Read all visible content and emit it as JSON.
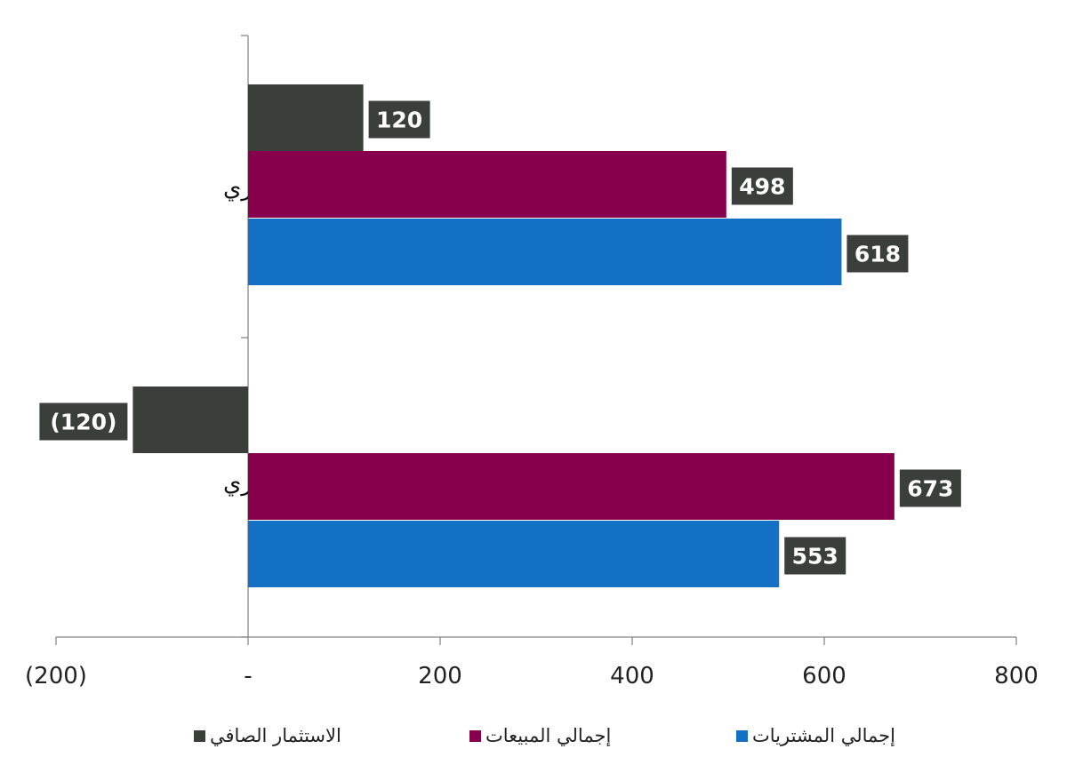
{
  "chart_data": {
    "type": "bar",
    "orientation": "horizontal",
    "categories": [
      "غير قطري",
      "قطري"
    ],
    "series": [
      {
        "name": "الاستثمار الصافي",
        "color": "#3A3F3C",
        "values": [
          120,
          -120
        ],
        "labels": [
          "120",
          "(120)"
        ]
      },
      {
        "name": "إجمالي المبيعات",
        "color": "#87004C",
        "values": [
          498,
          673
        ],
        "labels": [
          "498",
          "673"
        ]
      },
      {
        "name": "إجمالي المشتريات",
        "color": "#1470C4",
        "values": [
          618,
          553
        ],
        "labels": [
          "618",
          "553"
        ]
      }
    ],
    "xlim": [
      -200,
      800
    ],
    "xticks": [
      -200,
      0,
      200,
      400,
      600,
      800
    ],
    "xtick_labels": [
      "(200)",
      "-",
      "200",
      "400",
      "600",
      "800"
    ],
    "label_box_color": "#3A3F3C",
    "legend_position": "bottom",
    "grid": false
  }
}
